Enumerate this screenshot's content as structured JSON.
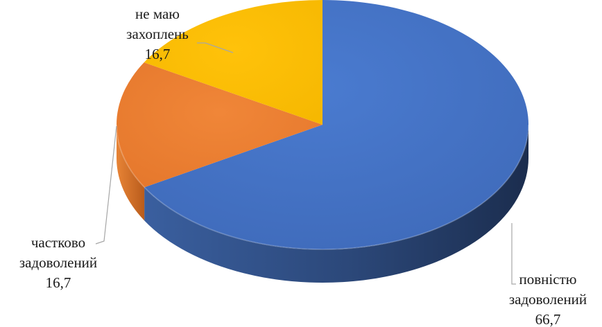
{
  "chart_data": {
    "type": "pie",
    "style": "3d",
    "start": "12 o'clock",
    "direction": "clockwise",
    "slices": [
      {
        "label_lines": [
          "повністю",
          "задоволений"
        ],
        "value": 66.7,
        "value_label": "66,7",
        "color": "#4472C4"
      },
      {
        "label_lines": [
          "частково",
          "задоволений"
        ],
        "value": 16.7,
        "value_label": "16,7",
        "color": "#ED7D31"
      },
      {
        "label_lines": [
          "не маю",
          "захоплень"
        ],
        "value": 16.7,
        "value_label": "16,7",
        "color": "#FFC000"
      }
    ],
    "legend": "none",
    "data_labels": "category name and value, outside with leader lines"
  }
}
